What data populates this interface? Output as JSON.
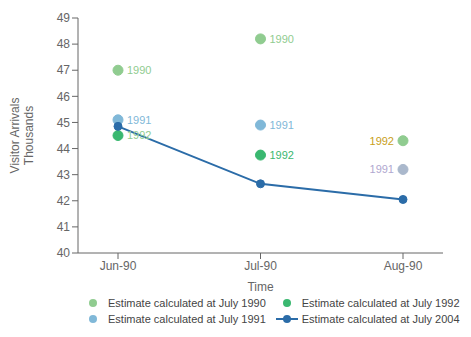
{
  "chart_data": {
    "type": "line",
    "x_label": "Time",
    "y_label": "Visitor Arrivals\nThousands",
    "categories": [
      "Jun-90",
      "Jul-90",
      "Aug-90"
    ],
    "ylim": [
      40,
      49
    ],
    "yticks": [
      40,
      41,
      42,
      43,
      44,
      45,
      46,
      47,
      48,
      49
    ],
    "grid": false,
    "legend": "bottom",
    "series": [
      {
        "name": "Estimate calculated at July 1990",
        "type": "scatter",
        "marker": "circle",
        "color": "#90cc90",
        "values": [
          47.0,
          48.2,
          null
        ]
      },
      {
        "name": "Estimate calculated at July 1992",
        "type": "scatter",
        "marker": "circle",
        "color": "#3ab870",
        "colors": [
          "#3ab870",
          "#3ab870",
          "#90cc90"
        ],
        "values": [
          44.5,
          43.75,
          44.3
        ]
      },
      {
        "name": "Estimate calculated at July 1991",
        "type": "scatter",
        "marker": "circle",
        "color": "#80b8d8",
        "colors": [
          "#80b8d8",
          "#80b8d8",
          "#aab8cc"
        ],
        "values": [
          45.1,
          44.9,
          43.2
        ]
      },
      {
        "name": "Estimate calculated at July 2004",
        "type": "line",
        "marker": "circle",
        "line_style": "solid",
        "color": "#2b6ca8",
        "values": [
          44.85,
          42.65,
          42.05
        ]
      }
    ],
    "annotations": [
      {
        "text": "1990",
        "x": "Jun-90",
        "y": 47.0,
        "color": "#90cc90"
      },
      {
        "text": "1991",
        "x": "Jun-90",
        "y": 45.1,
        "color": "#80b8d8"
      },
      {
        "text": "1992",
        "x": "Jun-90",
        "y": 44.5,
        "color": "#90cc90"
      },
      {
        "text": "1990",
        "x": "Jul-90",
        "y": 48.2,
        "color": "#90cc90"
      },
      {
        "text": "1991",
        "x": "Jul-90",
        "y": 44.9,
        "color": "#80b8d8"
      },
      {
        "text": "1992",
        "x": "Jul-90",
        "y": 43.75,
        "color": "#3ab870"
      },
      {
        "text": "1992",
        "x": "Aug-90",
        "y": 44.3,
        "color": "#c8a020"
      },
      {
        "text": "1991",
        "x": "Aug-90",
        "y": 43.2,
        "color": "#b0a8d0"
      }
    ]
  }
}
